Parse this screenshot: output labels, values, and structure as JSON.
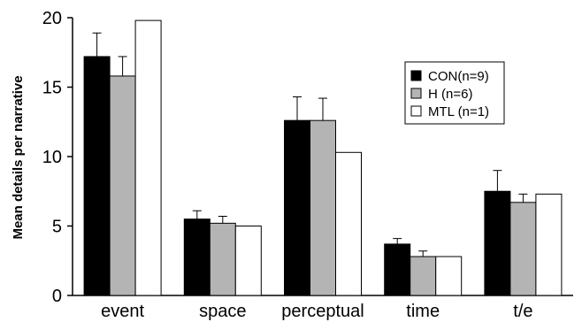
{
  "chart_data": {
    "type": "bar",
    "title": "",
    "xlabel": "",
    "ylabel": "Mean details per narrative",
    "ylim": [
      0,
      20
    ],
    "yticks": [
      0,
      5,
      10,
      15,
      20
    ],
    "grid": false,
    "legend_position": "top-right",
    "categories": [
      "event",
      "space",
      "perceptual",
      "time",
      "t/e"
    ],
    "series": [
      {
        "name": "CON(n=9)",
        "color": "#000000",
        "values": [
          17.2,
          5.5,
          12.6,
          3.7,
          7.5
        ],
        "error": [
          1.7,
          0.6,
          1.7,
          0.4,
          1.5
        ]
      },
      {
        "name": "H (n=6)",
        "color": "#b4b4b4",
        "values": [
          15.8,
          5.2,
          12.6,
          2.8,
          6.7
        ],
        "error": [
          1.4,
          0.5,
          1.6,
          0.4,
          0.6
        ]
      },
      {
        "name": "MTL (n=1)",
        "color": "#ffffff",
        "values": [
          19.8,
          5.0,
          10.3,
          2.8,
          7.3
        ],
        "error": null
      }
    ]
  }
}
